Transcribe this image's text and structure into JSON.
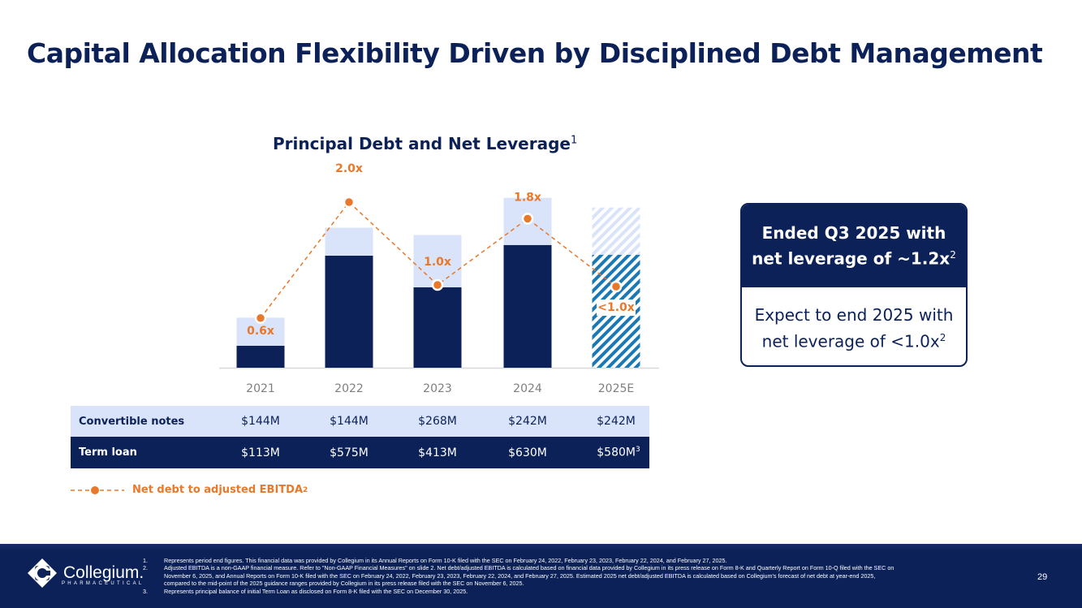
{
  "title": "Capital Allocation Flexibility Driven by Disciplined Debt Management",
  "chart_title": "Principal Debt and Net Leverage",
  "chart_title_sup": "1",
  "chart_data": {
    "type": "bar",
    "stacked": true,
    "title": "Principal Debt and Net Leverage",
    "categories": [
      "2021",
      "2022",
      "2023",
      "2024",
      "2025E"
    ],
    "series": [
      {
        "name": "Term loan",
        "unit": "$M",
        "values": [
          113,
          575,
          413,
          630,
          580
        ],
        "color": "#0c2157"
      },
      {
        "name": "Convertible notes",
        "unit": "$M",
        "values": [
          144,
          144,
          268,
          242,
          242
        ],
        "color": "#d9e3f9"
      }
    ],
    "line": {
      "name": "Net debt to adjusted EBITDA",
      "values": [
        0.6,
        2.0,
        1.0,
        1.8,
        0.98
      ],
      "labels": [
        "0.6x",
        "2.0x",
        "1.0x",
        "1.8x",
        "<1.0x"
      ],
      "color": "#e8782a"
    },
    "estimate_category": "2025E"
  },
  "table": {
    "rows": [
      {
        "label": "Convertible notes",
        "values": [
          "$144M",
          "$144M",
          "$268M",
          "$242M",
          "$242M"
        ]
      },
      {
        "label": "Term loan",
        "values": [
          "$113M",
          "$575M",
          "$413M",
          "$630M",
          "$580M"
        ],
        "last_sup": "3"
      }
    ]
  },
  "legend": {
    "label": "Net debt to adjusted EBITDA",
    "sup": "2"
  },
  "callout": {
    "header_line1": "Ended Q3 2025 with",
    "header_line2": "net leverage of ~1.2x",
    "header_sup": "2",
    "body_line1": "Expect to end 2025 with",
    "body_line2": "net leverage of <1.0x",
    "body_sup": "2"
  },
  "footer": {
    "logo_name": "Collegium.",
    "logo_sub": "PHARMACEUTICAL",
    "notes": [
      {
        "n": "1.",
        "text": "Represents period end figures. This financial data was provided by Collegium in its Annual Reports on Form 10-K filed with the SEC on February 24, 2022, February 23, 2023, February 22, 2024, and February 27, 2025."
      },
      {
        "n": "2.",
        "text": "Adjusted EBITDA is a non-GAAP financial measure. Refer to \"Non-GAAP Financial Measures\" on slide 2. Net debt/adjusted EBITDA is calculated based on financial data provided by Collegium in its press release on Form 8-K and Quarterly Report on Form 10-Q filed with the SEC on November 6, 2025, and Annual Reports on Form 10-K filed with the SEC on February 24, 2022, February 23, 2023, February 22, 2024, and February 27, 2025. Estimated 2025 net debt/adjusted EBITDA is calculated based on Collegium's forecast of net debt at year-end 2025, compared to the mid-point of the 2025 guidance ranges provided by Collegium in its press release filed with the SEC on November 6, 2025."
      },
      {
        "n": "3.",
        "text": "Represents principal balance of initial Term Loan as disclosed on Form 8-K filed with the SEC on December 30, 2025."
      }
    ],
    "page_number": "29"
  }
}
